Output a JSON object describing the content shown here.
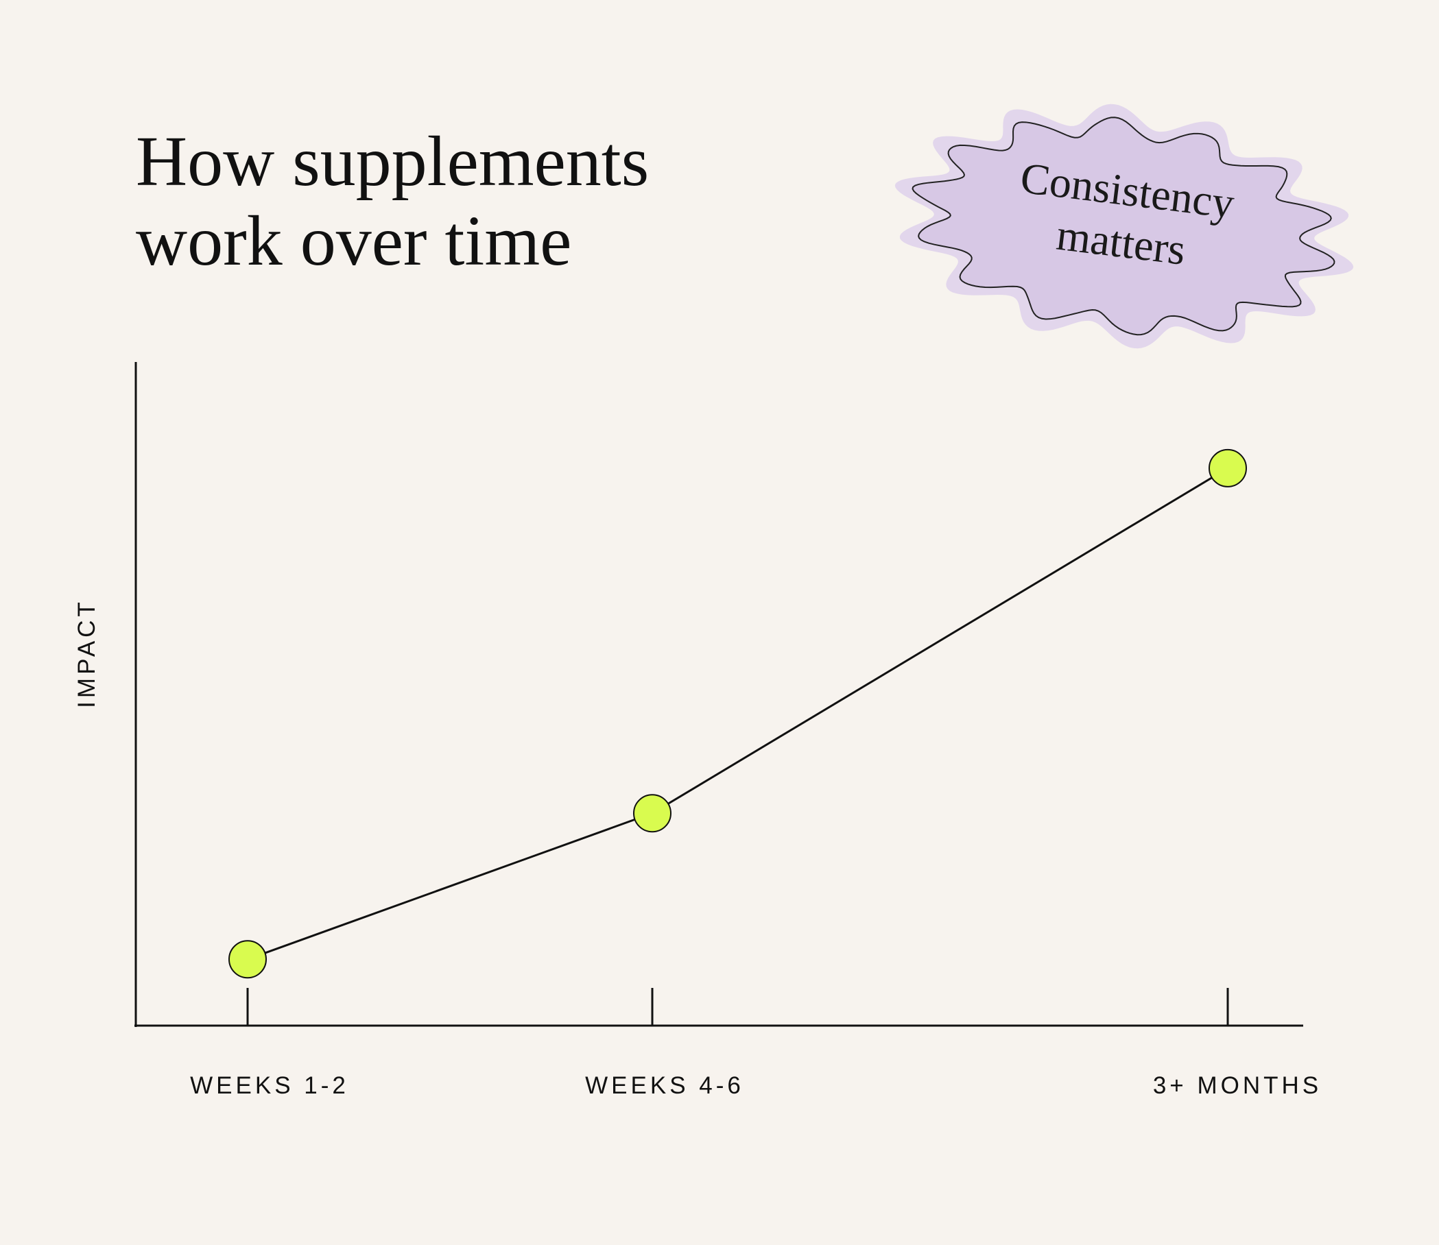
{
  "chart_data": {
    "type": "line",
    "title": "How supplements work over time",
    "annotation": "Consistency matters",
    "y_label": "IMPACT",
    "categories": [
      "WEEKS 1-2",
      "WEEKS 4-6",
      "3+ MONTHS"
    ],
    "values": [
      10,
      32,
      84
    ],
    "ylim": [
      0,
      100
    ],
    "color": "#111111",
    "marker_color": "#d9fb4f"
  }
}
